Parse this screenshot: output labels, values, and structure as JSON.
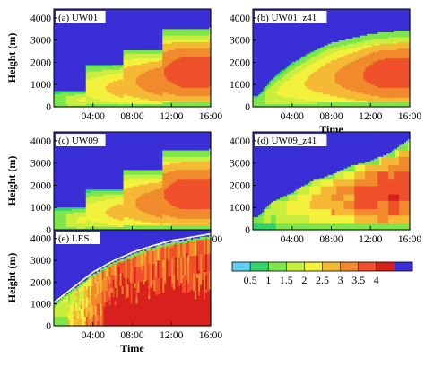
{
  "colors": {
    "bins": [
      "#3a2fd6",
      "#5fd0f2",
      "#31d36a",
      "#7de64b",
      "#c9ee3e",
      "#f2f23c",
      "#f5b935",
      "#f08a2c",
      "#f0502a",
      "#d8201c"
    ],
    "colorbar_order": [
      "#5fd0f2",
      "#31d36a",
      "#7de64b",
      "#c9ee3e",
      "#f2f23c",
      "#f5b935",
      "#f08a2c",
      "#f0502a",
      "#d8201c",
      "#3a2fd6"
    ],
    "contour": "#ffffff"
  },
  "chart_data": [
    {
      "type": "heatmap",
      "title": "(a) UW01",
      "ylabel": "Height (m)",
      "xlabel": "",
      "xticks": [
        "04:00",
        "08:00",
        "12:00",
        "16:00"
      ],
      "yticks": [
        "0",
        "1000",
        "2000",
        "3000",
        "4000"
      ],
      "xlim": [
        "00:00",
        "16:00"
      ],
      "ylim": [
        0,
        4400
      ],
      "style": "stepped",
      "pbl_top_m": [
        [
          1,
          700
        ],
        [
          3.5,
          1900
        ],
        [
          7.3,
          2600
        ],
        [
          11.3,
          3500
        ],
        [
          16,
          3600
        ]
      ],
      "max_value": 3.8
    },
    {
      "type": "heatmap",
      "title": "(b) UW01_z41",
      "ylabel": "",
      "xlabel": "Time",
      "xticks": [
        "04:00",
        "08:00",
        "12:00",
        "16:00"
      ],
      "yticks": [
        "0",
        "1000",
        "2000",
        "3000",
        "4000"
      ],
      "xlim": [
        "00:00",
        "16:00"
      ],
      "ylim": [
        0,
        4400
      ],
      "style": "smooth-steps",
      "pbl_top_m": [
        [
          0.5,
          500
        ],
        [
          2,
          1300
        ],
        [
          4,
          2000
        ],
        [
          6,
          2500
        ],
        [
          8,
          2900
        ],
        [
          10,
          3100
        ],
        [
          12,
          3300
        ],
        [
          14,
          3400
        ],
        [
          16,
          3450
        ]
      ],
      "max_value": 3.8
    },
    {
      "type": "heatmap",
      "title": "(c) UW09",
      "ylabel": "Height (m)",
      "xlabel": "",
      "xticks": [
        "04:00",
        "08:00",
        "12:00",
        "16:00"
      ],
      "yticks": [
        "0",
        "1000",
        "2000",
        "3000",
        "4000"
      ],
      "xlim": [
        "00:00",
        "16:00"
      ],
      "ylim": [
        0,
        4400
      ],
      "style": "stepped",
      "pbl_top_m": [
        [
          1,
          1000
        ],
        [
          3.5,
          1800
        ],
        [
          7.3,
          2700
        ],
        [
          11.3,
          3600
        ],
        [
          16,
          3700
        ]
      ],
      "max_value": 3.8
    },
    {
      "type": "heatmap",
      "title": "(d) UW09_z41",
      "ylabel": "",
      "xlabel": "",
      "xticks": [
        "04:00",
        "08:00",
        "12:00",
        "16:00"
      ],
      "yticks": [
        "0",
        "1000",
        "2000",
        "3000",
        "4000"
      ],
      "xlim": [
        "00:00",
        "16:00"
      ],
      "ylim": [
        0,
        4400
      ],
      "style": "blocky",
      "pbl_top_m": [
        [
          0.5,
          600
        ],
        [
          2,
          1300
        ],
        [
          4,
          1700
        ],
        [
          6,
          2200
        ],
        [
          8,
          2500
        ],
        [
          10,
          2900
        ],
        [
          12,
          3100
        ],
        [
          14,
          3500
        ],
        [
          16,
          4100
        ]
      ],
      "max_value": 3.9
    },
    {
      "type": "heatmap",
      "title": "(e) LES",
      "ylabel": "Height (m)",
      "xlabel": "Time",
      "xticks": [
        "04:00",
        "08:00",
        "12:00",
        "16:00"
      ],
      "yticks": [
        "0",
        "1000",
        "2000",
        "3000",
        "4000"
      ],
      "xlim": [
        "00:00",
        "16:00"
      ],
      "ylim": [
        0,
        4400
      ],
      "style": "turbulent",
      "pbl_top_m": [
        [
          0,
          1000
        ],
        [
          2,
          1700
        ],
        [
          4,
          2400
        ],
        [
          6,
          2900
        ],
        [
          8,
          3300
        ],
        [
          10,
          3600
        ],
        [
          12,
          3850
        ],
        [
          14,
          4000
        ],
        [
          16,
          4150
        ]
      ],
      "max_value": 4.0
    },
    {
      "type": "colorbar",
      "tick_labels": [
        "0.5",
        "1",
        "1.5",
        "2",
        "2.5",
        "3",
        "3.5",
        "4"
      ],
      "bin_edges": [
        0,
        0.5,
        1,
        1.5,
        2,
        2.5,
        3,
        3.5,
        4,
        4.5
      ]
    }
  ]
}
